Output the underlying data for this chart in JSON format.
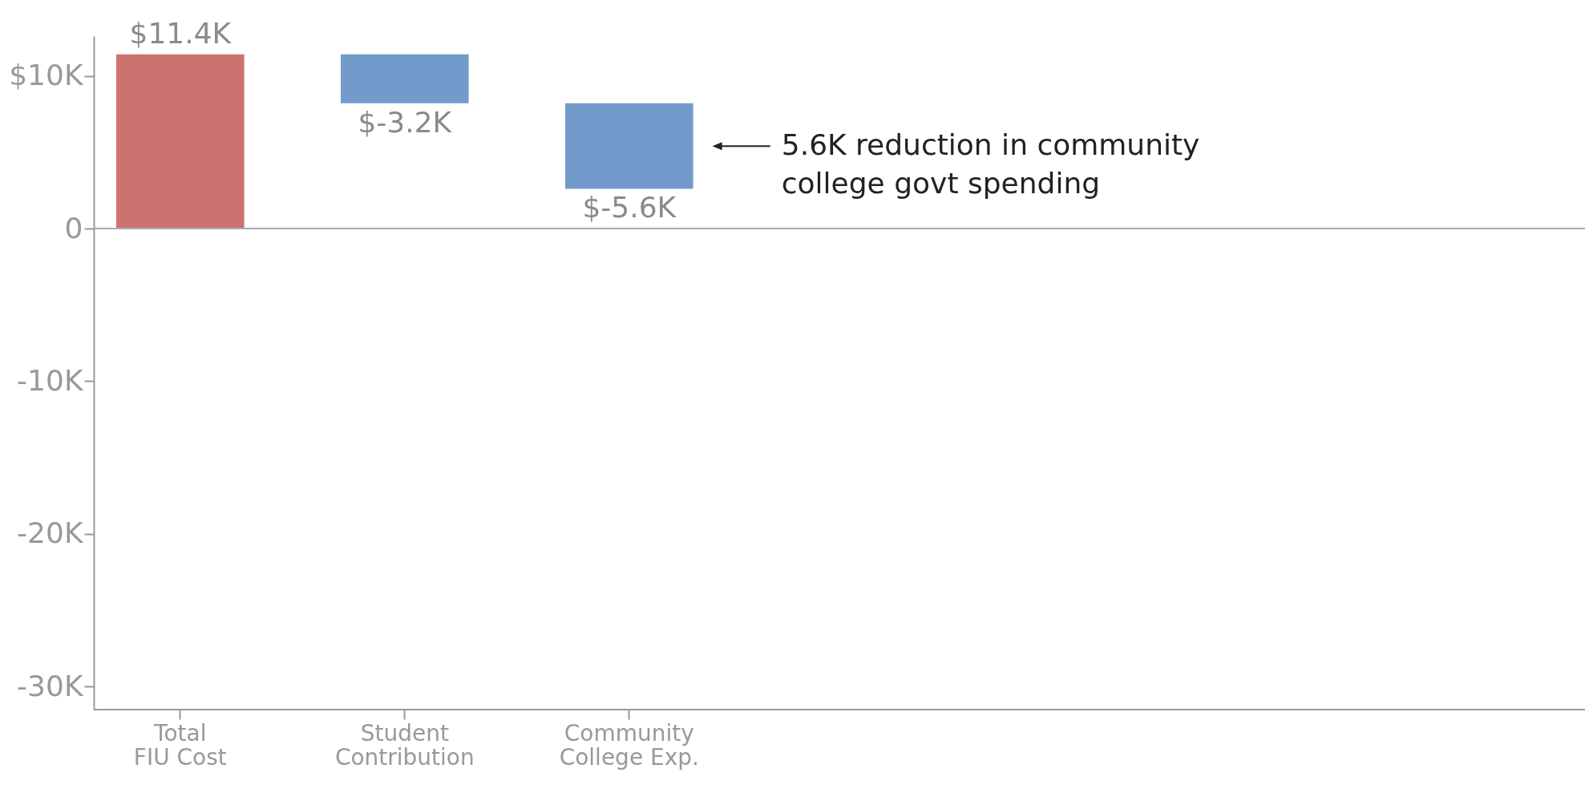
{
  "chart_data": {
    "type": "bar",
    "categories": [
      "Total FIU Cost",
      "Student Contribution",
      "Community College Exp."
    ],
    "values": [
      11400,
      -3200,
      -5600
    ],
    "base": [
      0,
      11400,
      8200
    ],
    "colors": [
      "#cc7370",
      "#729bcb",
      "#729bcb"
    ],
    "value_labels": [
      "$11.4K",
      "$-3.2K",
      "$-5.6K"
    ],
    "ylim": [
      -31500,
      12600
    ],
    "yticks": [
      {
        "value": 10000,
        "label": "$10K"
      },
      0,
      {
        "value": -10000,
        "label": "-10K"
      },
      {
        "value": -20000,
        "label": "-20K"
      },
      {
        "value": -30000,
        "label": "-30K"
      }
    ],
    "ref_lines": [
      {
        "axis": "y",
        "value": 0,
        "color": "#aaaaaa"
      }
    ],
    "annotations": [
      "5.6K reduction in community college govt spending"
    ],
    "grid": false
  }
}
